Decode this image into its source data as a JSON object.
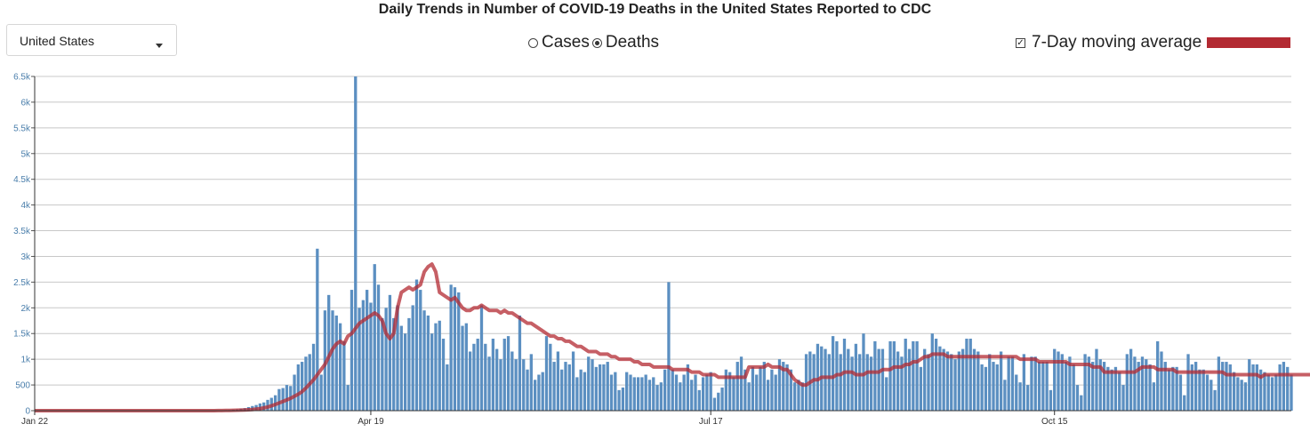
{
  "header": {
    "title": "Daily Trends in Number of COVID-19 Deaths in the United States Reported to CDC"
  },
  "controls": {
    "region_select": "United States",
    "radio_cases": "Cases",
    "radio_deaths": "Deaths",
    "selected_metric": "Deaths",
    "moving_average_label": "7-Day moving average",
    "moving_average_checked": true
  },
  "colors": {
    "bar": "#5b8fc1",
    "line": "#b32a32",
    "grid": "#c8c8c8",
    "tick_label": "#4a7eab"
  },
  "chart_data": {
    "type": "bar",
    "start_date": "2020-01-22",
    "x_tick_labels": [
      {
        "label": "Jan 22",
        "date": "2020-01-22"
      },
      {
        "label": "Apr 19",
        "date": "2020-04-19"
      },
      {
        "label": "Jul 17",
        "date": "2020-07-17"
      },
      {
        "label": "Oct 15",
        "date": "2020-10-15"
      }
    ],
    "y_tick_labels": [
      "0",
      "500",
      "1k",
      "1.5k",
      "2k",
      "2.5k",
      "3k",
      "3.5k",
      "4k",
      "4.5k",
      "5k",
      "5.5k",
      "6k",
      "6.5k"
    ],
    "ylim": [
      0,
      6500
    ],
    "grid": true,
    "series": [
      {
        "type": "bar",
        "values": [
          0,
          0,
          0,
          0,
          0,
          0,
          0,
          0,
          0,
          0,
          0,
          0,
          0,
          0,
          0,
          0,
          0,
          0,
          0,
          0,
          0,
          0,
          0,
          0,
          0,
          0,
          0,
          0,
          0,
          0,
          0,
          0,
          0,
          0,
          0,
          0,
          0,
          0,
          1,
          0,
          1,
          2,
          1,
          3,
          2,
          4,
          5,
          5,
          5,
          8,
          10,
          12,
          20,
          25,
          40,
          50,
          70,
          90,
          110,
          140,
          160,
          210,
          250,
          300,
          420,
          440,
          500,
          480,
          700,
          900,
          950,
          1050,
          1100,
          1300,
          3150,
          700,
          1950,
          2250,
          1950,
          1850,
          1700,
          1350,
          500,
          2350,
          6500,
          2000,
          2150,
          2350,
          2100,
          2850,
          2450,
          1800,
          2000,
          2250,
          1800,
          2050,
          1650,
          1500,
          1800,
          2050,
          2550,
          2350,
          1950,
          1850,
          1500,
          1700,
          1750,
          1400,
          900,
          2450,
          2400,
          2300,
          1650,
          1700,
          1150,
          1300,
          1400,
          2050,
          1300,
          1050,
          1400,
          1200,
          1000,
          1400,
          1450,
          1150,
          1000,
          1850,
          1000,
          800,
          1100,
          600,
          700,
          750,
          1450,
          1300,
          950,
          1150,
          800,
          950,
          900,
          1150,
          650,
          800,
          750,
          1050,
          1000,
          850,
          900,
          900,
          950,
          700,
          750,
          400,
          450,
          750,
          700,
          650,
          650,
          650,
          700,
          600,
          650,
          500,
          550,
          800,
          2500,
          800,
          700,
          550,
          700,
          900,
          600,
          700,
          400,
          650,
          700,
          750,
          250,
          350,
          450,
          800,
          750,
          650,
          950,
          1050,
          800,
          550,
          850,
          700,
          850,
          950,
          600,
          800,
          700,
          1000,
          950,
          900,
          800,
          550,
          600,
          550,
          1100,
          1150,
          1100,
          1300,
          1250,
          1200,
          1100,
          1450,
          1350,
          1100,
          1400,
          1200,
          1050,
          1300,
          1100,
          1500,
          1100,
          1050,
          1350,
          1200,
          1200,
          650,
          1350,
          1350,
          1150,
          1050,
          1400,
          1200,
          1350,
          1350,
          850,
          1200,
          1100,
          1500,
          1400,
          1250,
          1200,
          1150,
          1100,
          1000,
          1150,
          1200,
          1400,
          1400,
          1200,
          1150,
          900,
          850,
          1100,
          950,
          900,
          1150,
          600,
          1050,
          1050,
          700,
          550,
          1100,
          500,
          1050,
          1050,
          950,
          950,
          950,
          400,
          1200,
          1150,
          1100,
          950,
          1050,
          900,
          500,
          300,
          1100,
          1050,
          950,
          1200,
          1000,
          950,
          850,
          800,
          850,
          750,
          500,
          1100,
          1200,
          1050,
          950,
          1050,
          1000,
          900,
          550,
          1350,
          1150,
          950,
          800,
          850,
          850,
          700,
          300,
          1100,
          900,
          950,
          800,
          800,
          700,
          600,
          400,
          1050,
          950,
          950,
          900,
          750,
          650,
          600,
          550,
          1000,
          900,
          900,
          800,
          750,
          700,
          650,
          700,
          900,
          950,
          850,
          700
        ]
      },
      {
        "type": "line",
        "name": "7-Day moving average",
        "values": [
          0,
          0,
          0,
          0,
          0,
          0,
          0,
          0,
          0,
          0,
          0,
          0,
          0,
          0,
          0,
          0,
          0,
          0,
          0,
          0,
          0,
          0,
          0,
          0,
          0,
          0,
          0,
          0,
          0,
          0,
          0,
          0,
          0,
          0,
          0,
          0,
          0,
          0,
          0,
          0,
          0,
          0,
          0,
          0,
          0,
          1,
          1,
          1,
          2,
          3,
          4,
          5,
          6,
          8,
          10,
          13,
          17,
          22,
          30,
          40,
          55,
          70,
          95,
          120,
          150,
          180,
          210,
          240,
          280,
          320,
          370,
          440,
          520,
          600,
          700,
          800,
          900,
          1050,
          1200,
          1300,
          1350,
          1300,
          1450,
          1500,
          1600,
          1700,
          1750,
          1800,
          1850,
          1900,
          1850,
          1750,
          1500,
          1400,
          1500,
          2000,
          2300,
          2350,
          2400,
          2350,
          2400,
          2450,
          2700,
          2800,
          2850,
          2700,
          2300,
          2250,
          2200,
          2150,
          2200,
          2100,
          2000,
          1950,
          1950,
          2000,
          2000,
          2050,
          2000,
          1950,
          1950,
          1950,
          1900,
          1950,
          1900,
          1900,
          1850,
          1800,
          1750,
          1700,
          1700,
          1650,
          1600,
          1550,
          1500,
          1450,
          1450,
          1400,
          1400,
          1350,
          1350,
          1300,
          1250,
          1250,
          1200,
          1150,
          1150,
          1150,
          1100,
          1100,
          1100,
          1050,
          1050,
          1000,
          1000,
          1000,
          1000,
          950,
          950,
          900,
          900,
          900,
          850,
          850,
          850,
          850,
          850,
          800,
          800,
          800,
          800,
          800,
          750,
          750,
          750,
          700,
          700,
          700,
          700,
          650,
          650,
          650,
          650,
          650,
          650,
          650,
          650,
          850,
          850,
          850,
          850,
          850,
          900,
          850,
          850,
          850,
          800,
          800,
          700,
          600,
          550,
          500,
          500,
          550,
          600,
          600,
          650,
          650,
          650,
          650,
          700,
          700,
          750,
          750,
          750,
          700,
          700,
          700,
          750,
          750,
          750,
          750,
          800,
          800,
          800,
          850,
          850,
          850,
          900,
          900,
          950,
          950,
          1000,
          1050,
          1050,
          1100,
          1100,
          1100,
          1100,
          1050,
          1050,
          1050,
          1050,
          1050,
          1050,
          1050,
          1050,
          1050,
          1050,
          1050,
          1050,
          1050,
          1050,
          1050,
          1050,
          1050,
          1050,
          1050,
          1000,
          1000,
          1000,
          1000,
          1000,
          950,
          950,
          950,
          950,
          950,
          950,
          950,
          950,
          900,
          900,
          900,
          900,
          900,
          900,
          850,
          850,
          850,
          750,
          750,
          750,
          750,
          750,
          750,
          750,
          750,
          750,
          800,
          850,
          850,
          850,
          850,
          800,
          800,
          800,
          800,
          800,
          750,
          750,
          750,
          750,
          750,
          750,
          750,
          750,
          750,
          750,
          750,
          750,
          750,
          700,
          700,
          700,
          700,
          700,
          700,
          700,
          700,
          700,
          650,
          700,
          700,
          700,
          700,
          700,
          700,
          700,
          700,
          700,
          700,
          700,
          700,
          700,
          700,
          700,
          700,
          650,
          650,
          650
        ]
      }
    ]
  }
}
